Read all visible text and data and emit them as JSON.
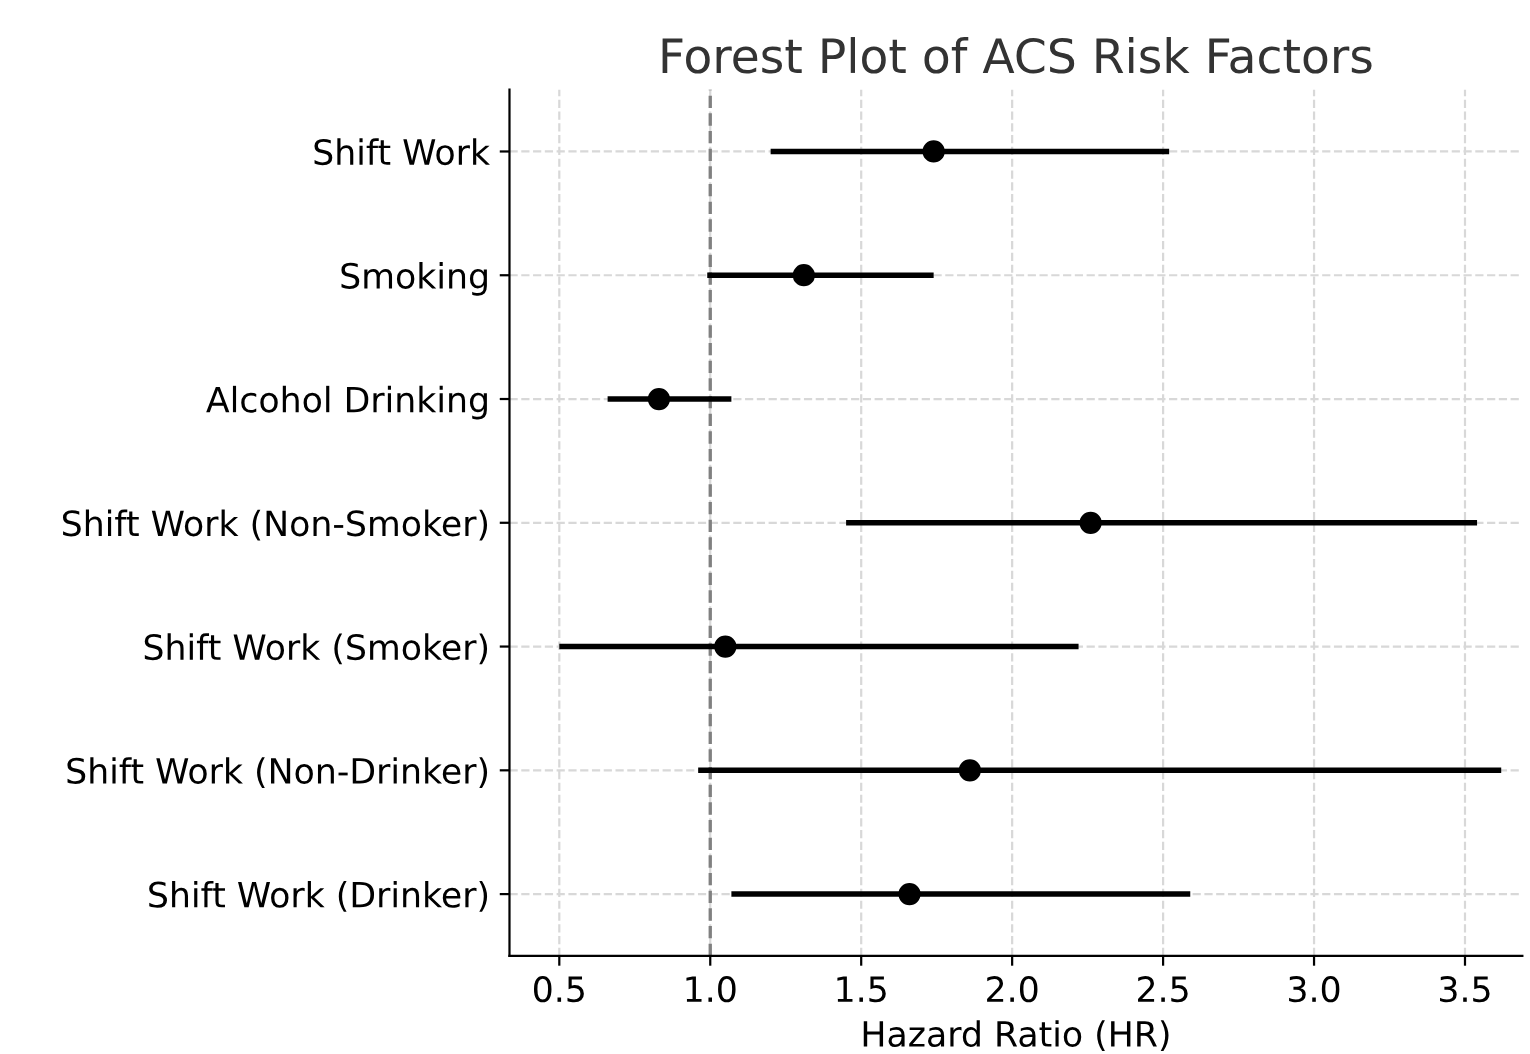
{
  "chart_data": {
    "type": "scatter",
    "orientation": "horizontal",
    "title": "Forest Plot of ACS Risk Factors",
    "xlabel": "Hazard Ratio (HR)",
    "categories": [
      "Shift Work",
      "Smoking",
      "Alcohol Drinking",
      "Shift Work (Non-Smoker)",
      "Shift Work (Smoker)",
      "Shift Work (Non-Drinker)",
      "Shift Work (Drinker)"
    ],
    "values": [
      1.74,
      1.31,
      0.83,
      2.26,
      1.05,
      1.86,
      1.66
    ],
    "errors": [
      [
        1.2,
        2.52
      ],
      [
        0.99,
        1.74
      ],
      [
        0.66,
        1.07
      ],
      [
        1.45,
        3.54
      ],
      [
        0.5,
        2.22
      ],
      [
        0.96,
        3.62
      ],
      [
        1.07,
        2.59
      ]
    ],
    "color": "#000000",
    "marker": "circle",
    "xlim": [
      0.335,
      3.69
    ],
    "xticks": [
      0.5,
      {
        "value": 1,
        "label": "1.0"
      },
      1.5,
      {
        "value": 2,
        "label": "2.0"
      },
      2.5,
      {
        "value": 3,
        "label": "3.0"
      },
      3.5
    ],
    "ref_lines": [
      {
        "axis": "x",
        "value": 1.0,
        "color": "#808080",
        "line_style": "dashed"
      }
    ],
    "grid": true
  }
}
